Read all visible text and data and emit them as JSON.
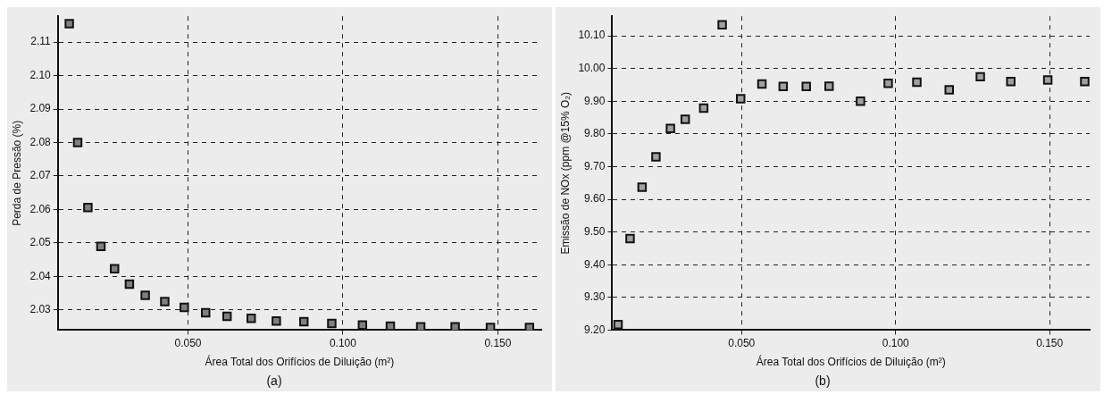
{
  "chart_data": [
    {
      "type": "scatter",
      "title": "(a)",
      "xlabel": "Área Total dos Orifícios de Diluição (m²)",
      "ylabel": "Perda de Pressão (%)",
      "x": [
        0.0117,
        0.0144,
        0.0177,
        0.0219,
        0.0263,
        0.0311,
        0.0362,
        0.0425,
        0.0488,
        0.0557,
        0.0626,
        0.0704,
        0.0785,
        0.0874,
        0.0964,
        0.1063,
        0.1153,
        0.1251,
        0.1362,
        0.1476,
        0.1602
      ],
      "series": [
        {
          "color": "#808080",
          "values": [
            2.1155,
            2.08,
            2.0606,
            2.049,
            2.0423,
            2.0377,
            2.0344,
            2.0325,
            2.0308,
            2.0292,
            2.0281,
            2.0275,
            2.0267,
            2.0265,
            2.026,
            2.0255,
            2.0252,
            2.025,
            2.025,
            2.0248,
            2.0248
          ]
        }
      ],
      "xlim": [
        0.008,
        0.164
      ],
      "xticks": [
        {
          "value": 0.05,
          "label": "0.050"
        },
        {
          "value": 0.1,
          "label": "0.100"
        },
        {
          "value": 0.15,
          "label": "0.150"
        }
      ],
      "ylim": [
        2.024,
        2.1177
      ],
      "yticks": [
        2.03,
        2.04,
        2.05,
        2.06,
        2.07,
        2.08,
        2.09,
        {
          "value": 2.1,
          "label": "2.10"
        },
        2.11
      ],
      "grid": true,
      "legend": false,
      "marker": "square"
    },
    {
      "type": "scatter",
      "title": "(b)",
      "xlabel": "Área Total dos Orifícios de Diluição (m²)",
      "ylabel": "Emissão de NOx (ppm @15% O₂)",
      "x": [
        0.0099,
        0.0138,
        0.0177,
        0.0222,
        0.0269,
        0.0317,
        0.0377,
        0.0437,
        0.0497,
        0.0566,
        0.0635,
        0.071,
        0.0784,
        0.0886,
        0.0976,
        0.1069,
        0.1174,
        0.1275,
        0.1374,
        0.1494,
        0.1614
      ],
      "series": [
        {
          "color": "#a0a0a0",
          "values": [
            9.217,
            9.48,
            9.637,
            9.73,
            9.817,
            9.845,
            9.879,
            10.134,
            9.908,
            9.953,
            9.945,
            9.945,
            9.946,
            9.9,
            9.955,
            9.958,
            9.935,
            9.975,
            9.96,
            9.965,
            9.96
          ]
        }
      ],
      "xlim": [
        0.008,
        0.163
      ],
      "xticks": [
        {
          "value": 0.05,
          "label": "0.050"
        },
        {
          "value": 0.1,
          "label": "0.100"
        },
        {
          "value": 0.15,
          "label": "0.150"
        }
      ],
      "ylim": [
        9.2,
        10.16
      ],
      "yticks": [
        {
          "value": 9.2,
          "label": "9.20"
        },
        {
          "value": 9.3,
          "label": "9.30"
        },
        {
          "value": 9.4,
          "label": "9.40"
        },
        {
          "value": 9.5,
          "label": "9.50"
        },
        {
          "value": 9.6,
          "label": "9.60"
        },
        {
          "value": 9.7,
          "label": "9.70"
        },
        {
          "value": 9.8,
          "label": "9.80"
        },
        {
          "value": 9.9,
          "label": "9.90"
        },
        {
          "value": 10.0,
          "label": "10.00"
        },
        {
          "value": 10.1,
          "label": "10.10"
        }
      ],
      "grid": true,
      "legend": false,
      "marker": "square"
    }
  ]
}
